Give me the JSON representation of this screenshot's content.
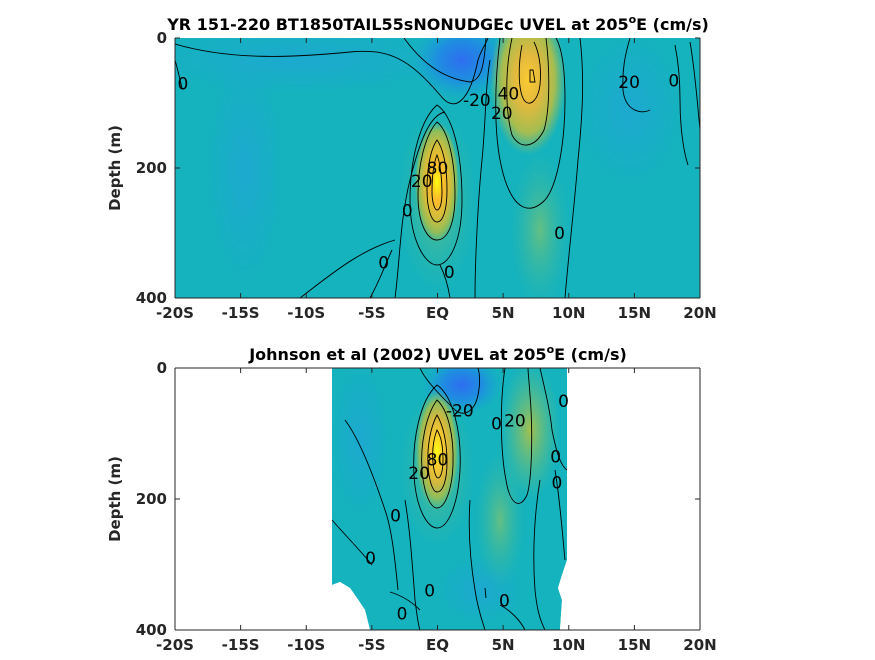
{
  "chart_data": [
    {
      "type": "heatmap",
      "title_main": "YR 151-220 BT1850TAIL55sNONUDGEc UVEL at 205",
      "title_sup": "o",
      "title_end": "E (cm/s)",
      "ylabel": "Depth (m)",
      "xlabel": "",
      "xlim": [
        -20,
        20
      ],
      "ylim": [
        0,
        400
      ],
      "y_reversed": true,
      "x_ticks": [
        -20,
        -15,
        -10,
        -5,
        0,
        5,
        10,
        15,
        20
      ],
      "x_tick_labels": [
        "-20S",
        "-15S",
        "-10S",
        "-5S",
        "EQ",
        "5N",
        "10N",
        "15N",
        "20N"
      ],
      "y_ticks": [
        0,
        200,
        400
      ],
      "y_tick_labels": [
        "0",
        "200",
        "400"
      ],
      "colormap": "parula",
      "color_range": [
        -40,
        100
      ],
      "features": [
        {
          "name": "Equatorial Undercurrent",
          "x": 0,
          "y": 180,
          "peak": 100
        },
        {
          "name": "North Equatorial Countercurrent",
          "x": 7,
          "y": 50,
          "peak": 70
        },
        {
          "name": "South Equatorial Current (north)",
          "x": 2,
          "y": 20,
          "peak": -40
        }
      ],
      "contour_labels": [
        {
          "text": "0",
          "x": -19.4,
          "y": 70
        },
        {
          "text": "20",
          "x": 14.6,
          "y": 68
        },
        {
          "text": "0",
          "x": 18.0,
          "y": 65
        },
        {
          "text": "-20",
          "x": 3.0,
          "y": 95
        },
        {
          "text": "40",
          "x": 5.4,
          "y": 85
        },
        {
          "text": "20",
          "x": 4.9,
          "y": 115
        },
        {
          "text": "80",
          "x": 0.0,
          "y": 200
        },
        {
          "text": "20",
          "x": -1.2,
          "y": 220
        },
        {
          "text": "0",
          "x": -2.3,
          "y": 265
        },
        {
          "text": "0",
          "x": -4.1,
          "y": 345
        },
        {
          "text": "0",
          "x": 0.9,
          "y": 360
        },
        {
          "text": "0",
          "x": 9.3,
          "y": 300
        }
      ]
    },
    {
      "type": "heatmap",
      "title_main": "Johnson et al (2002) UVEL at 205",
      "title_sup": "o",
      "title_end": "E (cm/s)",
      "ylabel": "Depth (m)",
      "xlabel": "",
      "xlim": [
        -20,
        20
      ],
      "ylim": [
        0,
        400
      ],
      "y_reversed": true,
      "x_ticks": [
        -20,
        -15,
        -10,
        -5,
        0,
        5,
        10,
        15,
        20
      ],
      "x_tick_labels": [
        "-20S",
        "-15S",
        "-10S",
        "-5S",
        "EQ",
        "5N",
        "10N",
        "15N",
        "20N"
      ],
      "y_ticks": [
        0,
        200,
        400
      ],
      "y_tick_labels": [
        "0",
        "200",
        "400"
      ],
      "data_extent_x": [
        -8,
        10
      ],
      "colormap": "parula",
      "color_range": [
        -40,
        100
      ],
      "features": [
        {
          "name": "Equatorial Undercurrent",
          "x": 0,
          "y": 140,
          "peak": 100
        },
        {
          "name": "North Equatorial Countercurrent",
          "x": 7,
          "y": 60,
          "peak": 40
        },
        {
          "name": "South Equatorial Current (north)",
          "x": 2,
          "y": 20,
          "peak": -40
        }
      ],
      "contour_labels": [
        {
          "text": "-20",
          "x": 1.7,
          "y": 65
        },
        {
          "text": "20",
          "x": 5.9,
          "y": 80
        },
        {
          "text": "0",
          "x": 9.6,
          "y": 50
        },
        {
          "text": "0",
          "x": 4.5,
          "y": 85
        },
        {
          "text": "0",
          "x": 9.0,
          "y": 135
        },
        {
          "text": "0",
          "x": 9.1,
          "y": 175
        },
        {
          "text": "80",
          "x": 0.0,
          "y": 140
        },
        {
          "text": "20",
          "x": -1.4,
          "y": 160
        },
        {
          "text": "0",
          "x": -3.2,
          "y": 225
        },
        {
          "text": "0",
          "x": -5.1,
          "y": 290
        },
        {
          "text": "0",
          "x": -0.6,
          "y": 340
        },
        {
          "text": "0",
          "x": 5.1,
          "y": 355
        },
        {
          "text": "0",
          "x": -2.7,
          "y": 375
        }
      ]
    }
  ]
}
